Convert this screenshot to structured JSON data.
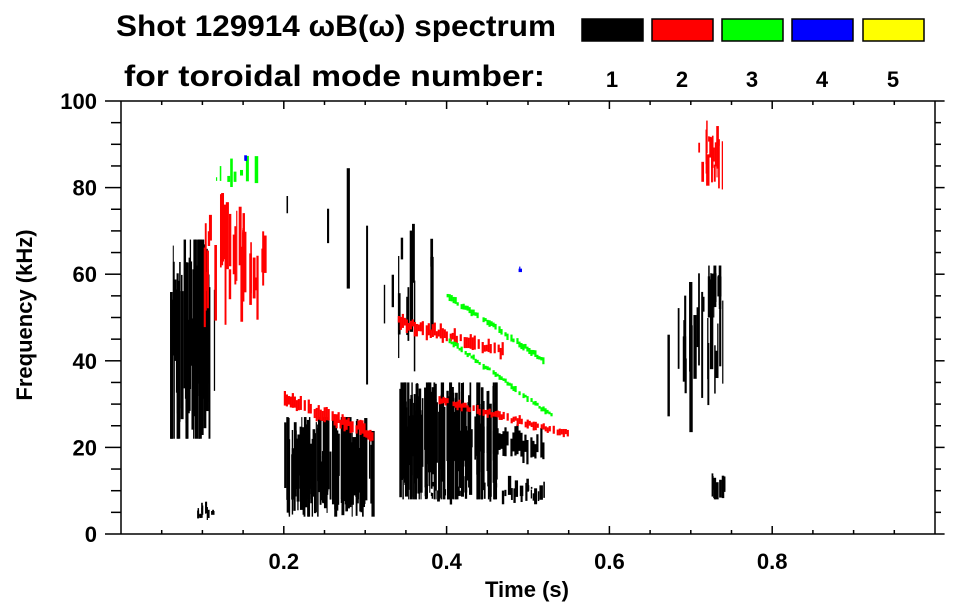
{
  "chart_data": {
    "type": "heatmap",
    "title": "Shot 129914 ωB(ω) spectrum",
    "subtitle": "for toroidal mode number:",
    "xlabel": "Time (s)",
    "ylabel": "Frequency (kHz)",
    "xlim": [
      0,
      1.0
    ],
    "ylim": [
      0,
      100
    ],
    "xticks": [
      0.2,
      0.4,
      0.6,
      0.8
    ],
    "xtick_labels": [
      "0.2",
      "0.4",
      "0.6",
      "0.8"
    ],
    "yticks": [
      0,
      20,
      40,
      60,
      80,
      100
    ],
    "ytick_labels": [
      "0",
      "20",
      "40",
      "60",
      "80",
      "100"
    ],
    "grid": false,
    "legend": {
      "placement": "top-right",
      "entries": [
        {
          "label": "1",
          "color": "#000000"
        },
        {
          "label": "2",
          "color": "#ff0000"
        },
        {
          "label": "3",
          "color": "#00ff00"
        },
        {
          "label": "4",
          "color": "#0000ff"
        },
        {
          "label": "5",
          "color": "#ffff00"
        }
      ]
    },
    "features": [
      {
        "mode": 1,
        "kind": "blob",
        "t": [
          0.06,
          0.115
        ],
        "f": [
          22,
          68
        ],
        "density": 0.8
      },
      {
        "mode": 1,
        "kind": "blob",
        "t": [
          0.085,
          0.12
        ],
        "f": [
          2,
          8
        ],
        "density": 0.3
      },
      {
        "mode": 2,
        "kind": "blob",
        "t": [
          0.1,
          0.18
        ],
        "f": [
          45,
          82
        ],
        "density": 0.35
      },
      {
        "mode": 3,
        "kind": "blob",
        "t": [
          0.11,
          0.165
        ],
        "f": [
          78,
          90
        ],
        "density": 0.15
      },
      {
        "mode": 4,
        "kind": "blob",
        "t": [
          0.15,
          0.152
        ],
        "f": [
          85,
          88
        ],
        "density": 1
      },
      {
        "mode": 1,
        "kind": "blob",
        "t": [
          0.2,
          0.31
        ],
        "f": [
          4,
          27
        ],
        "density": 0.95
      },
      {
        "mode": 1,
        "kind": "blob",
        "t": [
          0.2,
          0.35
        ],
        "f": [
          28,
          98
        ],
        "density": 0.04
      },
      {
        "mode": 2,
        "kind": "chirp",
        "t": [
          0.2,
          0.31
        ],
        "f": [
          31,
          23
        ],
        "width": 2.5
      },
      {
        "mode": 1,
        "kind": "blob",
        "t": [
          0.34,
          0.46
        ],
        "f": [
          8,
          35
        ],
        "density": 0.85
      },
      {
        "mode": 1,
        "kind": "blob",
        "t": [
          0.34,
          0.39
        ],
        "f": [
          35,
          78
        ],
        "density": 0.15
      },
      {
        "mode": 1,
        "kind": "chirp",
        "t": [
          0.4,
          0.52
        ],
        "f": [
          22,
          20
        ],
        "width": 5
      },
      {
        "mode": 1,
        "kind": "blob",
        "t": [
          0.37,
          0.52
        ],
        "f": [
          6,
          14
        ],
        "density": 0.2
      },
      {
        "mode": 2,
        "kind": "chirp",
        "t": [
          0.34,
          0.47
        ],
        "f": [
          49,
          42
        ],
        "width": 2.5
      },
      {
        "mode": 2,
        "kind": "chirp",
        "t": [
          0.39,
          0.55
        ],
        "f": [
          31,
          23
        ],
        "width": 1.5
      },
      {
        "mode": 3,
        "kind": "chirp",
        "t": [
          0.4,
          0.52
        ],
        "f": [
          55,
          40
        ],
        "width": 1.2
      },
      {
        "mode": 3,
        "kind": "chirp",
        "t": [
          0.4,
          0.53
        ],
        "f": [
          45,
          27
        ],
        "width": 1.0
      },
      {
        "mode": 4,
        "kind": "blob",
        "t": [
          0.488,
          0.49
        ],
        "f": [
          60,
          62
        ],
        "density": 1
      },
      {
        "mode": 1,
        "kind": "blob",
        "t": [
          0.67,
          0.74
        ],
        "f": [
          22,
          68
        ],
        "density": 0.25
      },
      {
        "mode": 1,
        "kind": "blob",
        "t": [
          0.72,
          0.735
        ],
        "f": [
          50,
          62
        ],
        "density": 0.8
      },
      {
        "mode": 2,
        "kind": "blob",
        "t": [
          0.705,
          0.74
        ],
        "f": [
          77,
          98
        ],
        "density": 0.45
      },
      {
        "mode": 1,
        "kind": "blob",
        "t": [
          0.725,
          0.74
        ],
        "f": [
          8,
          14
        ],
        "density": 0.6
      }
    ]
  }
}
